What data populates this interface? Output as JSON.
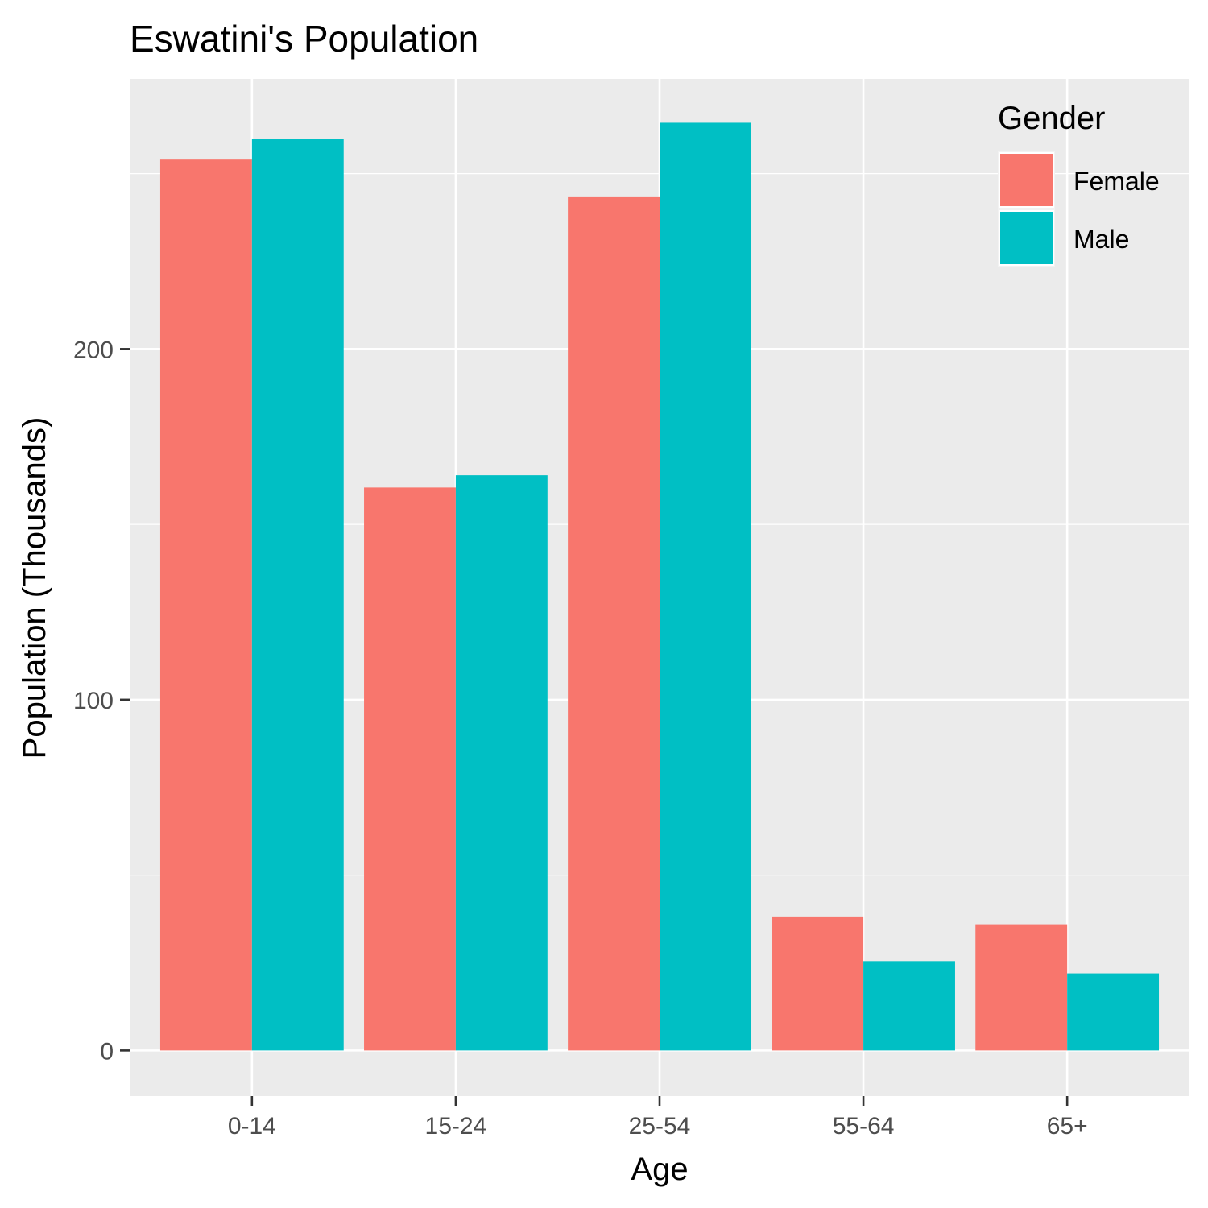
{
  "chart_data": {
    "type": "bar",
    "title": "Eswatini's Population",
    "xlabel": "Age",
    "ylabel": "Population (Thousands)",
    "categories": [
      "0-14",
      "15-24",
      "25-54",
      "55-64",
      "65+"
    ],
    "series": [
      {
        "name": "Female",
        "color": "#F8766D",
        "values": [
          254,
          160.5,
          243.5,
          38,
          36
        ]
      },
      {
        "name": "Male",
        "color": "#00BFC4",
        "values": [
          260,
          164,
          264.5,
          25.5,
          22
        ]
      }
    ],
    "ylim": [
      -13,
      277
    ],
    "yticks": [
      0,
      100,
      200
    ],
    "ytick_labels": [
      "0",
      "100",
      "200"
    ],
    "grid": true,
    "legend": {
      "title": "Gender",
      "placement": "top-right-inside"
    },
    "colors": {
      "panel": "#EBEBEB",
      "grid": "#FFFFFF",
      "tick": "#333333"
    }
  }
}
